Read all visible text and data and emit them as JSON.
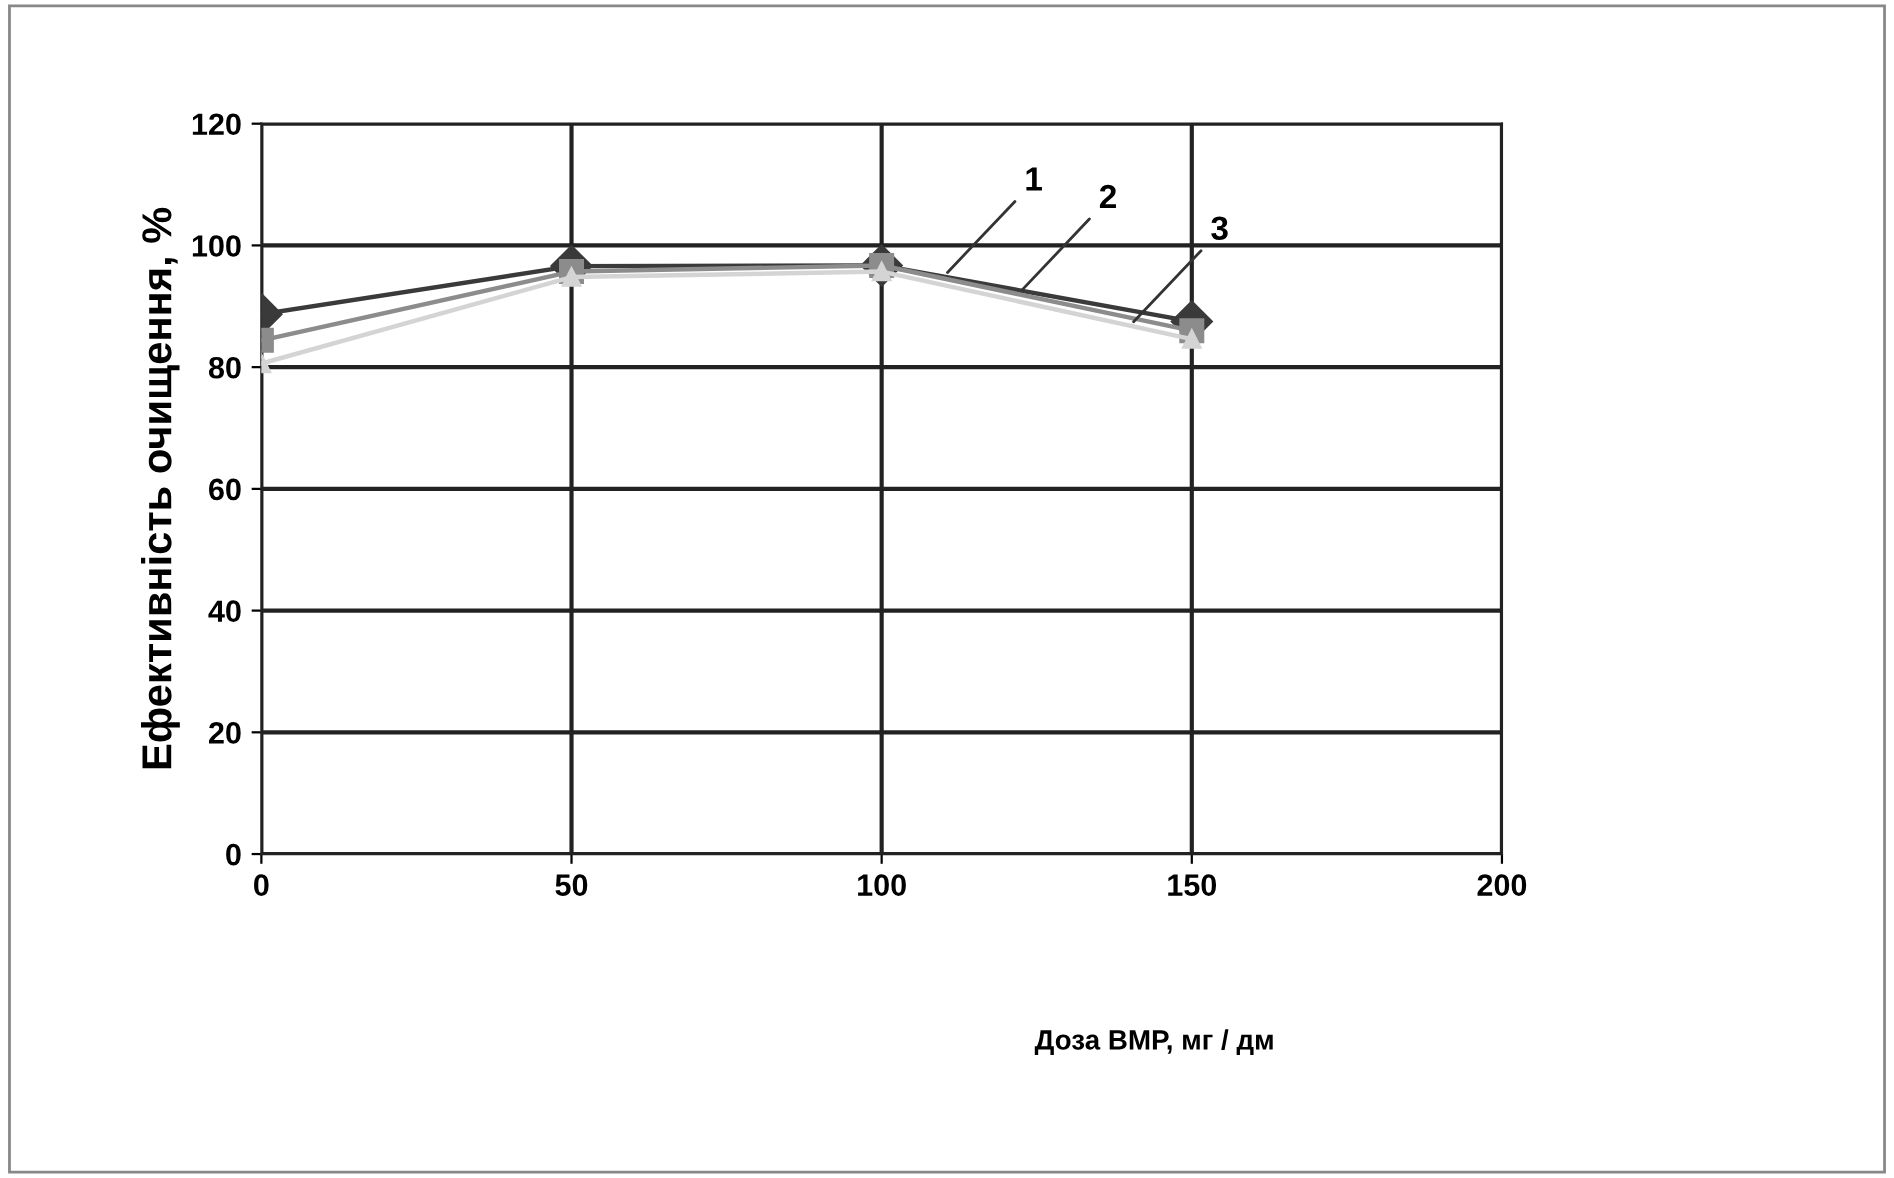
{
  "chart_data": {
    "type": "line",
    "ylabel": "Ефективність очищення, %",
    "xlabel": "Доза ВМР, мг / дм",
    "x": [
      0,
      50,
      100,
      150
    ],
    "series": [
      {
        "color": "#3a3a3a",
        "values": [
          88.7,
          96.6,
          96.7,
          87.5
        ],
        "marker": "diamond"
      },
      {
        "color": "#8c8c8c",
        "values": [
          84.4,
          95.7,
          96.7,
          86
        ],
        "marker": "square"
      },
      {
        "color": "#d4d4d4",
        "values": [
          80.6,
          94.8,
          95.7,
          84.6
        ],
        "marker": "triangle"
      }
    ],
    "xlim": [
      0,
      200
    ],
    "ylim": [
      0,
      120
    ],
    "xticks": [
      0,
      50,
      100,
      150,
      200
    ],
    "yticks": [
      0,
      20,
      40,
      60,
      80,
      100,
      120
    ],
    "grid": true,
    "legend": false,
    "line_style": "solid",
    "annotations": [
      {
        "text": "1",
        "x": 110,
        "y": 94.9
      },
      {
        "text": "2",
        "x": 122,
        "y": 92
      },
      {
        "text": "3",
        "x": 140,
        "y": 86.8
      }
    ]
  }
}
